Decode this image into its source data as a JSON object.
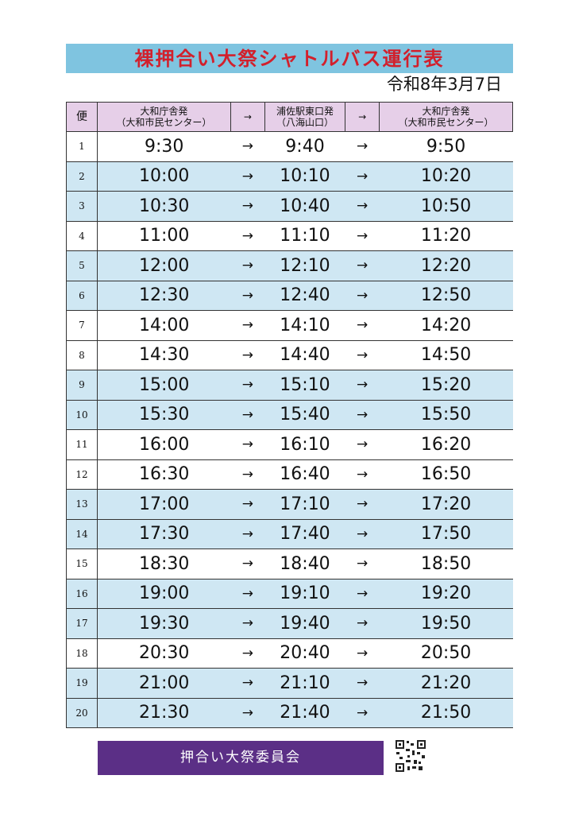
{
  "title": "裸押合い大祭シャトルバス運行表",
  "date": "令和8年3月7日",
  "table": {
    "header": [
      [
        "便"
      ],
      [
        "大和庁舎発",
        "（大和市民センター）"
      ],
      [
        "→"
      ],
      [
        "浦佐駅東口発",
        "（八海山口）"
      ],
      [
        "→"
      ],
      [
        "大和庁舎発",
        "（大和市民センター）"
      ]
    ],
    "rows": [
      [
        "1",
        "9:30",
        "→",
        "9:40",
        "→",
        "9:50"
      ],
      [
        "2",
        "10:00",
        "→",
        "10:10",
        "→",
        "10:20"
      ],
      [
        "3",
        "10:30",
        "→",
        "10:40",
        "→",
        "10:50"
      ],
      [
        "4",
        "11:00",
        "→",
        "11:10",
        "→",
        "11:20"
      ],
      [
        "5",
        "12:00",
        "→",
        "12:10",
        "→",
        "12:20"
      ],
      [
        "6",
        "12:30",
        "→",
        "12:40",
        "→",
        "12:50"
      ],
      [
        "7",
        "14:00",
        "→",
        "14:10",
        "→",
        "14:20"
      ],
      [
        "8",
        "14:30",
        "→",
        "14:40",
        "→",
        "14:50"
      ],
      [
        "9",
        "15:00",
        "→",
        "15:10",
        "→",
        "15:20"
      ],
      [
        "10",
        "15:30",
        "→",
        "15:40",
        "→",
        "15:50"
      ],
      [
        "11",
        "16:00",
        "→",
        "16:10",
        "→",
        "16:20"
      ],
      [
        "12",
        "16:30",
        "→",
        "16:40",
        "→",
        "16:50"
      ],
      [
        "13",
        "17:00",
        "→",
        "17:10",
        "→",
        "17:20"
      ],
      [
        "14",
        "17:30",
        "→",
        "17:40",
        "→",
        "17:50"
      ],
      [
        "15",
        "18:30",
        "→",
        "18:40",
        "→",
        "18:50"
      ],
      [
        "16",
        "19:00",
        "→",
        "19:10",
        "→",
        "19:20"
      ],
      [
        "17",
        "19:30",
        "→",
        "19:40",
        "→",
        "19:50"
      ],
      [
        "18",
        "20:30",
        "→",
        "20:40",
        "→",
        "20:50"
      ],
      [
        "19",
        "21:00",
        "→",
        "21:10",
        "→",
        "21:20"
      ],
      [
        "20",
        "21:30",
        "→",
        "21:40",
        "→",
        "21:50"
      ]
    ]
  },
  "footer": "押合い大祭委員会"
}
